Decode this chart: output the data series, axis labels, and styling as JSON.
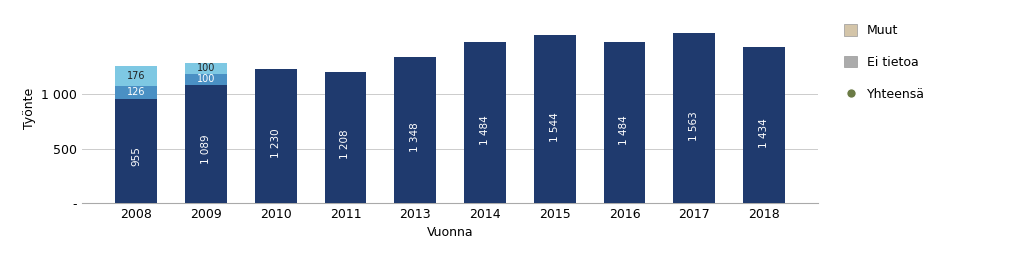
{
  "years": [
    "2008",
    "2009",
    "2010",
    "2011",
    "2013",
    "2014",
    "2015",
    "2016",
    "2017",
    "2018"
  ],
  "base_values": [
    955,
    1089,
    1230,
    1208,
    1348,
    1484,
    1544,
    1484,
    1563,
    1434
  ],
  "mid_values": [
    126,
    100,
    0,
    0,
    0,
    0,
    0,
    0,
    0,
    0
  ],
  "top_values": [
    176,
    100,
    0,
    0,
    0,
    0,
    0,
    0,
    0,
    0
  ],
  "base_color": "#1F3A6E",
  "mid_color": "#4A90C4",
  "top_color": "#7EC8E3",
  "bar_text_color": "#FFFFFF",
  "bar_width": 0.6,
  "ylim": [
    0,
    1750
  ],
  "yticks": [
    0,
    500,
    1000
  ],
  "ytick_labels": [
    "-",
    "500",
    "1 000"
  ],
  "ylabel": "Työnte",
  "xlabel": "Vuonna",
  "legend_labels": [
    "Muut",
    "Ei tietoa",
    "Yhteensä"
  ],
  "legend_colors": [
    "#D4C5A9",
    "#ABABAB",
    "#6B7B45"
  ],
  "legend_marker_types": [
    "square",
    "square",
    "circle"
  ],
  "bg_color": "#FFFFFF",
  "grid_color": "#CCCCCC",
  "bar_label_fontsize": 7.5,
  "axis_label_fontsize": 9
}
